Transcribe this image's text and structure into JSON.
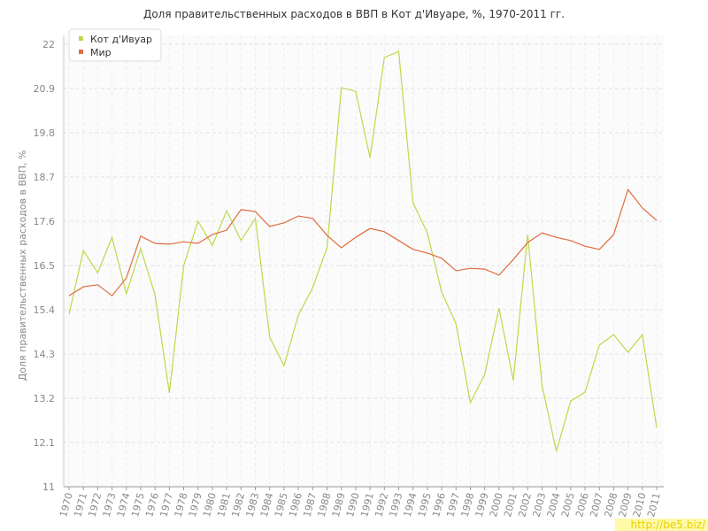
{
  "chart_data": {
    "type": "line",
    "title": "Доля правительственных расходов в ВВП в Кот д'Ивуаре, %, 1970-2011 гг.",
    "y_label": "Доля правительственных расходов в ВВП, %",
    "watermark": "http://be5.biz/",
    "x": [
      1970,
      1971,
      1972,
      1973,
      1974,
      1975,
      1976,
      1977,
      1978,
      1979,
      1980,
      1981,
      1982,
      1983,
      1984,
      1985,
      1986,
      1987,
      1988,
      1989,
      1990,
      1991,
      1992,
      1993,
      1994,
      1995,
      1996,
      1997,
      1998,
      1999,
      2000,
      2001,
      2002,
      2003,
      2004,
      2005,
      2006,
      2007,
      2008,
      2009,
      2010,
      2011
    ],
    "xlim": [
      1970,
      2011
    ],
    "series": [
      {
        "name": "Кот д'Ивуар",
        "color": "#bcd94a",
        "values": [
          15.29,
          16.87,
          16.32,
          17.2,
          15.8,
          16.92,
          15.77,
          13.33,
          16.5,
          17.6,
          17.0,
          17.86,
          17.12,
          17.67,
          14.72,
          14.01,
          15.27,
          15.95,
          16.94,
          20.92,
          20.83,
          19.18,
          21.67,
          21.82,
          18.06,
          17.31,
          15.84,
          15.05,
          13.09,
          13.79,
          15.44,
          13.64,
          17.27,
          13.53,
          11.88,
          13.13,
          13.35,
          14.52,
          14.78,
          14.34,
          14.78,
          12.47
        ]
      },
      {
        "name": "Мир",
        "color": "#e06c3c",
        "values": [
          15.75,
          15.97,
          16.02,
          15.75,
          16.19,
          17.23,
          17.05,
          17.03,
          17.09,
          17.05,
          17.27,
          17.38,
          17.89,
          17.84,
          17.47,
          17.56,
          17.73,
          17.67,
          17.25,
          16.94,
          17.2,
          17.42,
          17.34,
          17.12,
          16.9,
          16.81,
          16.68,
          16.37,
          16.43,
          16.41,
          16.26,
          16.65,
          17.07,
          17.31,
          17.2,
          17.12,
          16.98,
          16.9,
          17.27,
          18.39,
          17.93,
          17.62
        ]
      }
    ],
    "ylim": [
      11,
      22
    ],
    "yticks": [
      11,
      12.1,
      13.2,
      14.3,
      15.4,
      16.5,
      17.6,
      18.7,
      19.8,
      20.9,
      22
    ],
    "grid": true,
    "legend": "top-left"
  }
}
